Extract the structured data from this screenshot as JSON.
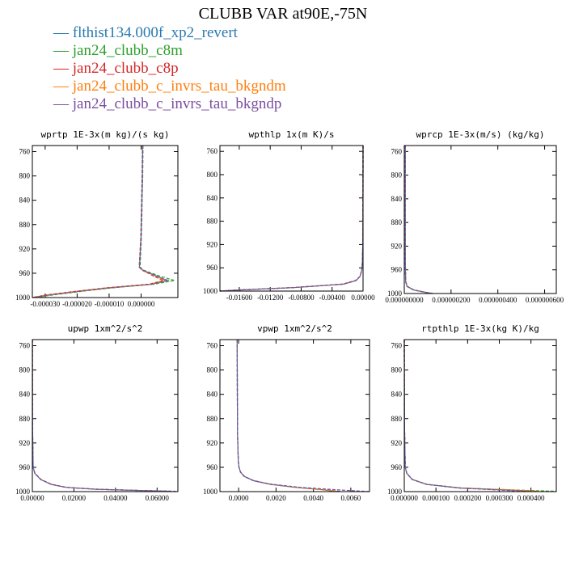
{
  "title": "CLUBB VAR at90E,-75N",
  "legend": [
    {
      "label": "— flthist134.000f_xp2_revert",
      "color": "#2a7ab0"
    },
    {
      "label": "— jan24_clubb_c8m",
      "color": "#2ca02c"
    },
    {
      "label": "— jan24_clubb_c8p",
      "color": "#d62728"
    },
    {
      "label": "— jan24_clubb_c_invrs_tau_bkgndm",
      "color": "#ff7f0e"
    },
    {
      "label": "— jan24_clubb_c_invrs_tau_bkgndp",
      "color": "#7b4fa0"
    }
  ],
  "chart_data": [
    {
      "type": "line",
      "title": "wprtp  1E-3x(m kg)/(s kg)",
      "xlim": [
        -3.4e-05,
        1.15e-05
      ],
      "ylim": [
        1000,
        750
      ],
      "xticks": [
        -3e-05,
        -2e-05,
        -1e-05,
        0.0
      ],
      "xtick_labels": [
        "-0.000030",
        "-0.000020",
        "-0.000010",
        "0.000000"
      ],
      "yticks": [
        760,
        800,
        840,
        880,
        920,
        960,
        1000
      ],
      "ytick_labels": [
        "760",
        "800",
        "840",
        "880",
        "920",
        "960",
        "1000"
      ],
      "y": [
        750,
        800,
        850,
        900,
        950,
        955,
        965,
        972,
        978,
        984,
        990,
        996,
        1000
      ],
      "series": [
        {
          "name": "flthist134.000f_xp2_revert",
          "x": [
            5e-07,
            4e-07,
            2e-07,
            0.0,
            -5e-07,
            5e-07,
            5e-06,
            8e-06,
            3e-06,
            -1e-05,
            -2e-05,
            -2.9e-05,
            -3.4e-05
          ]
        },
        {
          "name": "jan24_clubb_c8m",
          "x": [
            6e-07,
            5e-07,
            3e-07,
            1e-07,
            -3e-07,
            8e-07,
            6e-06,
            1.05e-05,
            4e-06,
            -9e-06,
            -1.9e-05,
            -2.8e-05,
            -3.3e-05
          ]
        },
        {
          "name": "jan24_clubb_c8p",
          "x": [
            4e-07,
            3e-07,
            1e-07,
            -1e-07,
            -6e-07,
            3e-07,
            4e-06,
            7e-06,
            2.5e-06,
            -1.1e-05,
            -2.1e-05,
            -3e-05,
            -3.4e-05
          ]
        },
        {
          "name": "jan24_clubb_c_invrs_tau_bkgndm",
          "x": [
            5e-07,
            4e-07,
            2e-07,
            0.0,
            -5e-07,
            4e-07,
            4.5e-06,
            7.5e-06,
            3e-06,
            -1.05e-05,
            -2.05e-05,
            -2.95e-05,
            -3.4e-05
          ]
        },
        {
          "name": "jan24_clubb_c_invrs_tau_bkgndp",
          "x": [
            5e-07,
            4e-07,
            2e-07,
            0.0,
            -5e-07,
            6e-07,
            5e-06,
            8.5e-06,
            3.2e-06,
            -1e-05,
            -2e-05,
            -2.9e-05,
            -3.4e-05
          ]
        }
      ]
    },
    {
      "type": "line",
      "title": "wpthlp  1x(m K)/s",
      "xlim": [
        -0.0185,
        0.0
      ],
      "ylim": [
        1000,
        750
      ],
      "xticks": [
        -0.016,
        -0.012,
        -0.008,
        -0.004,
        0.0
      ],
      "xtick_labels": [
        "-0.01600",
        "-0.01200",
        "-0.00800",
        "-0.00400",
        "0.00000"
      ],
      "yticks": [
        760,
        800,
        840,
        880,
        920,
        960,
        1000
      ],
      "ytick_labels": [
        "760",
        "800",
        "840",
        "880",
        "920",
        "960",
        "1000"
      ],
      "y": [
        750,
        850,
        920,
        950,
        965,
        975,
        982,
        988,
        994,
        998,
        1000
      ],
      "series": [
        {
          "name": "flthist134.000f_xp2_revert",
          "x": [
            0.0,
            -1e-05,
            -3e-05,
            -8e-05,
            -0.00018,
            -0.0004,
            -0.0009,
            -0.0025,
            -0.009,
            -0.016,
            -0.0185
          ]
        },
        {
          "name": "jan24_clubb_c8m",
          "x": [
            0.0,
            -1e-05,
            -3e-05,
            -8e-05,
            -0.00018,
            -0.0004,
            -0.00095,
            -0.0026,
            -0.0091,
            -0.016,
            -0.0185
          ]
        },
        {
          "name": "jan24_clubb_c8p",
          "x": [
            0.0,
            -1e-05,
            -3e-05,
            -8e-05,
            -0.00019,
            -0.00042,
            -0.001,
            -0.0027,
            -0.0093,
            -0.0161,
            -0.0185
          ]
        },
        {
          "name": "jan24_clubb_c_invrs_tau_bkgndm",
          "x": [
            0.0,
            -1e-05,
            -3e-05,
            -8e-05,
            -0.00018,
            -0.0004,
            -0.0009,
            -0.0025,
            -0.009,
            -0.016,
            -0.0185
          ]
        },
        {
          "name": "jan24_clubb_c_invrs_tau_bkgndp",
          "x": [
            0.0,
            -1e-05,
            -3e-05,
            -8e-05,
            -0.00018,
            -0.00041,
            -0.00092,
            -0.0025,
            -0.009,
            -0.016,
            -0.0185
          ]
        }
      ]
    },
    {
      "type": "line",
      "title": "wprcp  1E-3x(m/s) (kg/kg)",
      "xlim": [
        0.0,
        6.5e-07
      ],
      "ylim": [
        1000,
        750
      ],
      "xticks": [
        0.0,
        2e-07,
        4e-07,
        6e-07
      ],
      "xtick_labels": [
        "0.000000000",
        "0.000000200",
        "0.000000400",
        "0.000000600"
      ],
      "yticks": [
        760,
        800,
        840,
        880,
        920,
        960,
        1000
      ],
      "ytick_labels": [
        "760",
        "800",
        "840",
        "880",
        "920",
        "960",
        "1000"
      ],
      "y": [
        750,
        850,
        950,
        980,
        988,
        994,
        998,
        1000
      ],
      "series": [
        {
          "name": "flthist134.000f_xp2_revert",
          "x": [
            4.5e-09,
            4e-09,
            4.5e-09,
            6e-09,
            1.2e-08,
            4e-08,
            9e-08,
            1.2e-07
          ]
        },
        {
          "name": "jan24_clubb_c8m",
          "x": [
            4e-09,
            3.5e-09,
            4e-09,
            5.5e-09,
            1.1e-08,
            3.8e-08,
            8.8e-08,
            1.18e-07
          ]
        },
        {
          "name": "jan24_clubb_c8p",
          "x": [
            5e-09,
            4.5e-09,
            5e-09,
            6.5e-09,
            1.3e-08,
            4.2e-08,
            9.2e-08,
            1.22e-07
          ]
        },
        {
          "name": "jan24_clubb_c_invrs_tau_bkgndm",
          "x": [
            4.5e-09,
            4e-09,
            4.5e-09,
            6e-09,
            1.2e-08,
            4e-08,
            9e-08,
            1.2e-07
          ]
        },
        {
          "name": "jan24_clubb_c_invrs_tau_bkgndp",
          "x": [
            4.5e-09,
            4e-09,
            4.5e-09,
            6e-09,
            1.2e-08,
            4e-08,
            9e-08,
            1.2e-07
          ]
        }
      ]
    },
    {
      "type": "line",
      "title": "upwp  1xm^2/s^2",
      "xlim": [
        0.0,
        0.07
      ],
      "ylim": [
        1000,
        750
      ],
      "xticks": [
        0.0,
        0.02,
        0.04,
        0.06
      ],
      "xtick_labels": [
        "0.00000",
        "0.02000",
        "0.04000",
        "0.06000"
      ],
      "yticks": [
        760,
        800,
        840,
        880,
        920,
        960,
        1000
      ],
      "ytick_labels": [
        "760",
        "800",
        "840",
        "880",
        "920",
        "960",
        "1000"
      ],
      "y": [
        750,
        900,
        960,
        970,
        980,
        988,
        993,
        996,
        998,
        999.5
      ],
      "series": [
        {
          "name": "flthist134.000f_xp2_revert",
          "x": [
            5e-05,
            0.0001,
            0.0004,
            0.0012,
            0.004,
            0.009,
            0.016,
            0.03,
            0.05,
            0.066
          ]
        },
        {
          "name": "jan24_clubb_c8m",
          "x": [
            5e-05,
            0.0001,
            0.0004,
            0.0012,
            0.0041,
            0.0091,
            0.0162,
            0.0302,
            0.0502,
            0.066
          ]
        },
        {
          "name": "jan24_clubb_c8p",
          "x": [
            5e-05,
            0.0001,
            0.0004,
            0.0013,
            0.0042,
            0.0093,
            0.0165,
            0.0305,
            0.0505,
            0.067
          ]
        },
        {
          "name": "jan24_clubb_c_invrs_tau_bkgndm",
          "x": [
            5e-05,
            0.0001,
            0.0004,
            0.0012,
            0.004,
            0.009,
            0.016,
            0.03,
            0.05,
            0.066
          ]
        },
        {
          "name": "jan24_clubb_c_invrs_tau_bkgndp",
          "x": [
            5e-05,
            0.0001,
            0.0004,
            0.0012,
            0.004,
            0.009,
            0.016,
            0.03,
            0.05,
            0.069
          ]
        }
      ]
    },
    {
      "type": "line",
      "title": "vpwp  1xm^2/s^2",
      "xlim": [
        -0.001,
        0.007
      ],
      "ylim": [
        1000,
        750
      ],
      "xticks": [
        0.0,
        0.002,
        0.004,
        0.006
      ],
      "xtick_labels": [
        "0.0000",
        "0.0020",
        "0.0040",
        "0.0060"
      ],
      "yticks": [
        760,
        800,
        840,
        880,
        920,
        960,
        1000
      ],
      "ytick_labels": [
        "760",
        "800",
        "840",
        "880",
        "920",
        "960",
        "1000"
      ],
      "y": [
        750,
        900,
        950,
        960,
        968,
        975,
        982,
        988,
        993,
        997,
        1000
      ],
      "series": [
        {
          "name": "flthist134.000f_xp2_revert",
          "x": [
            -8e-05,
            -6e-05,
            -2e-05,
            2e-05,
            0.0001,
            0.0003,
            0.0008,
            0.0017,
            0.003,
            0.0045,
            0.0053
          ]
        },
        {
          "name": "jan24_clubb_c8m",
          "x": [
            -8e-05,
            -6e-05,
            -2e-05,
            2e-05,
            0.0001,
            0.0003,
            0.0008,
            0.0017,
            0.0031,
            0.0046,
            0.0055
          ]
        },
        {
          "name": "jan24_clubb_c8p",
          "x": [
            -8e-05,
            -6e-05,
            -2e-05,
            2e-05,
            0.00011,
            0.00032,
            0.00082,
            0.0017,
            0.0031,
            0.0046,
            0.0054
          ]
        },
        {
          "name": "jan24_clubb_c_invrs_tau_bkgndm",
          "x": [
            -8e-05,
            -6e-05,
            -2e-05,
            2e-05,
            0.0001,
            0.0003,
            0.0008,
            0.0017,
            0.003,
            0.0045,
            0.0053
          ]
        },
        {
          "name": "jan24_clubb_c_invrs_tau_bkgndp",
          "x": [
            -8e-05,
            -6e-05,
            -2e-05,
            2e-05,
            0.0001,
            0.0003,
            0.0008,
            0.0018,
            0.0033,
            0.0052,
            0.007
          ]
        }
      ]
    },
    {
      "type": "line",
      "title": "rtpthlp  1E-3x(kg K)/kg",
      "xlim": [
        0.0,
        0.00048
      ],
      "ylim": [
        1000,
        750
      ],
      "xticks": [
        0.0,
        0.0001,
        0.0002,
        0.0003,
        0.0004
      ],
      "xtick_labels": [
        "0.000000",
        "0.000100",
        "0.000200",
        "0.000300",
        "0.000400"
      ],
      "yticks": [
        760,
        800,
        840,
        880,
        920,
        960,
        1000
      ],
      "ytick_labels": [
        "760",
        "800",
        "840",
        "880",
        "920",
        "960",
        "1000"
      ],
      "y": [
        750,
        900,
        960,
        970,
        980,
        988,
        994,
        997.5,
        999.5
      ],
      "series": [
        {
          "name": "flthist134.000f_xp2_revert",
          "x": [
            0.0,
            1e-06,
            3e-06,
            8e-06,
            2.5e-05,
            7e-05,
            0.000175,
            0.00034,
            0.00042
          ]
        },
        {
          "name": "jan24_clubb_c8m",
          "x": [
            0.0,
            1e-06,
            3e-06,
            8e-06,
            2.6e-05,
            7.2e-05,
            0.00018,
            0.00036,
            0.00048
          ]
        },
        {
          "name": "jan24_clubb_c8p",
          "x": [
            0.0,
            1e-06,
            3e-06,
            8e-06,
            2.5e-05,
            7e-05,
            0.000175,
            0.00034,
            0.00042
          ]
        },
        {
          "name": "jan24_clubb_c_invrs_tau_bkgndm",
          "x": [
            0.0,
            1e-06,
            3e-06,
            8e-06,
            2.6e-05,
            7.1e-05,
            0.000178,
            0.00035,
            0.00043
          ]
        },
        {
          "name": "jan24_clubb_c_invrs_tau_bkgndp",
          "x": [
            0.0,
            1e-06,
            3e-06,
            8e-06,
            2.5e-05,
            7e-05,
            0.00017,
            0.0003,
            0.00038
          ]
        }
      ]
    }
  ]
}
